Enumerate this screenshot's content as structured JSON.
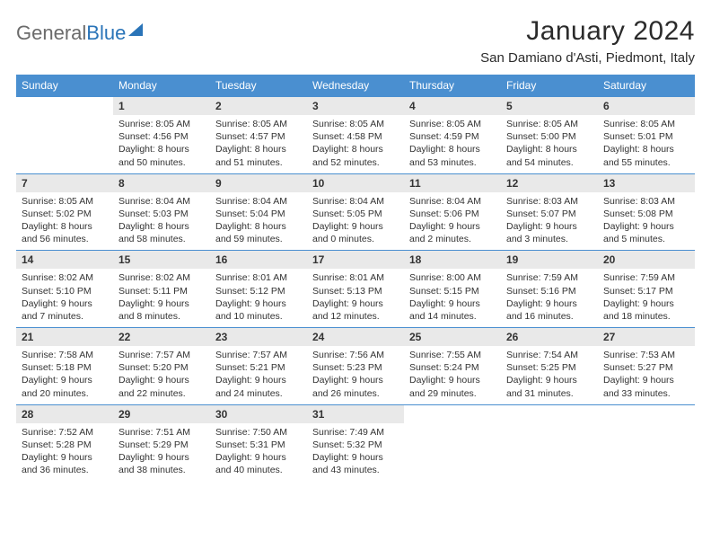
{
  "branding": {
    "logo_gray": "General",
    "logo_blue": "Blue"
  },
  "header": {
    "month_title": "January 2024",
    "location": "San Damiano d'Asti, Piedmont, Italy"
  },
  "colors": {
    "header_bg": "#4a8fd0",
    "header_fg": "#ffffff",
    "daynum_bg": "#e9e9e9",
    "row_border": "#4a8fd0",
    "brand_blue": "#2a74b8",
    "brand_gray": "#6b6b6b",
    "text": "#333333"
  },
  "daynames": [
    "Sunday",
    "Monday",
    "Tuesday",
    "Wednesday",
    "Thursday",
    "Friday",
    "Saturday"
  ],
  "weeks": [
    [
      null,
      {
        "n": "1",
        "sr": "8:05 AM",
        "ss": "4:56 PM",
        "dl": "8 hours and 50 minutes."
      },
      {
        "n": "2",
        "sr": "8:05 AM",
        "ss": "4:57 PM",
        "dl": "8 hours and 51 minutes."
      },
      {
        "n": "3",
        "sr": "8:05 AM",
        "ss": "4:58 PM",
        "dl": "8 hours and 52 minutes."
      },
      {
        "n": "4",
        "sr": "8:05 AM",
        "ss": "4:59 PM",
        "dl": "8 hours and 53 minutes."
      },
      {
        "n": "5",
        "sr": "8:05 AM",
        "ss": "5:00 PM",
        "dl": "8 hours and 54 minutes."
      },
      {
        "n": "6",
        "sr": "8:05 AM",
        "ss": "5:01 PM",
        "dl": "8 hours and 55 minutes."
      }
    ],
    [
      {
        "n": "7",
        "sr": "8:05 AM",
        "ss": "5:02 PM",
        "dl": "8 hours and 56 minutes."
      },
      {
        "n": "8",
        "sr": "8:04 AM",
        "ss": "5:03 PM",
        "dl": "8 hours and 58 minutes."
      },
      {
        "n": "9",
        "sr": "8:04 AM",
        "ss": "5:04 PM",
        "dl": "8 hours and 59 minutes."
      },
      {
        "n": "10",
        "sr": "8:04 AM",
        "ss": "5:05 PM",
        "dl": "9 hours and 0 minutes."
      },
      {
        "n": "11",
        "sr": "8:04 AM",
        "ss": "5:06 PM",
        "dl": "9 hours and 2 minutes."
      },
      {
        "n": "12",
        "sr": "8:03 AM",
        "ss": "5:07 PM",
        "dl": "9 hours and 3 minutes."
      },
      {
        "n": "13",
        "sr": "8:03 AM",
        "ss": "5:08 PM",
        "dl": "9 hours and 5 minutes."
      }
    ],
    [
      {
        "n": "14",
        "sr": "8:02 AM",
        "ss": "5:10 PM",
        "dl": "9 hours and 7 minutes."
      },
      {
        "n": "15",
        "sr": "8:02 AM",
        "ss": "5:11 PM",
        "dl": "9 hours and 8 minutes."
      },
      {
        "n": "16",
        "sr": "8:01 AM",
        "ss": "5:12 PM",
        "dl": "9 hours and 10 minutes."
      },
      {
        "n": "17",
        "sr": "8:01 AM",
        "ss": "5:13 PM",
        "dl": "9 hours and 12 minutes."
      },
      {
        "n": "18",
        "sr": "8:00 AM",
        "ss": "5:15 PM",
        "dl": "9 hours and 14 minutes."
      },
      {
        "n": "19",
        "sr": "7:59 AM",
        "ss": "5:16 PM",
        "dl": "9 hours and 16 minutes."
      },
      {
        "n": "20",
        "sr": "7:59 AM",
        "ss": "5:17 PM",
        "dl": "9 hours and 18 minutes."
      }
    ],
    [
      {
        "n": "21",
        "sr": "7:58 AM",
        "ss": "5:18 PM",
        "dl": "9 hours and 20 minutes."
      },
      {
        "n": "22",
        "sr": "7:57 AM",
        "ss": "5:20 PM",
        "dl": "9 hours and 22 minutes."
      },
      {
        "n": "23",
        "sr": "7:57 AM",
        "ss": "5:21 PM",
        "dl": "9 hours and 24 minutes."
      },
      {
        "n": "24",
        "sr": "7:56 AM",
        "ss": "5:23 PM",
        "dl": "9 hours and 26 minutes."
      },
      {
        "n": "25",
        "sr": "7:55 AM",
        "ss": "5:24 PM",
        "dl": "9 hours and 29 minutes."
      },
      {
        "n": "26",
        "sr": "7:54 AM",
        "ss": "5:25 PM",
        "dl": "9 hours and 31 minutes."
      },
      {
        "n": "27",
        "sr": "7:53 AM",
        "ss": "5:27 PM",
        "dl": "9 hours and 33 minutes."
      }
    ],
    [
      {
        "n": "28",
        "sr": "7:52 AM",
        "ss": "5:28 PM",
        "dl": "9 hours and 36 minutes."
      },
      {
        "n": "29",
        "sr": "7:51 AM",
        "ss": "5:29 PM",
        "dl": "9 hours and 38 minutes."
      },
      {
        "n": "30",
        "sr": "7:50 AM",
        "ss": "5:31 PM",
        "dl": "9 hours and 40 minutes."
      },
      {
        "n": "31",
        "sr": "7:49 AM",
        "ss": "5:32 PM",
        "dl": "9 hours and 43 minutes."
      },
      null,
      null,
      null
    ]
  ],
  "labels": {
    "sunrise": "Sunrise: ",
    "sunset": "Sunset: ",
    "daylight": "Daylight: "
  }
}
